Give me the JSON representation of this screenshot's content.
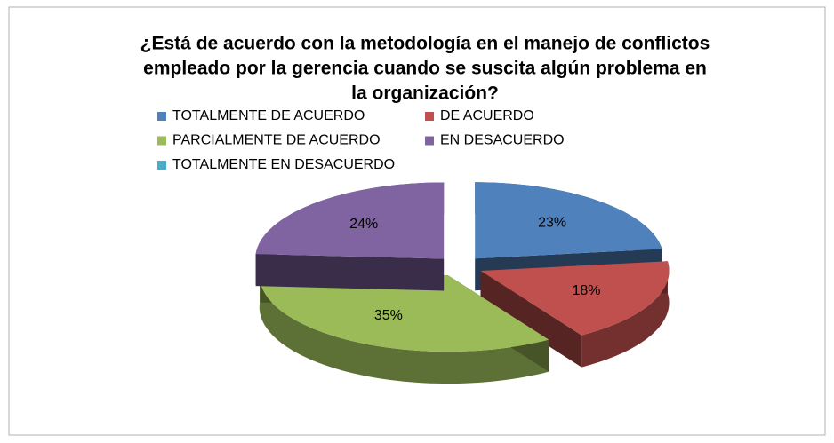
{
  "chart_data": {
    "type": "pie3d",
    "title": [
      "¿Está de acuerdo con la metodología en el manejo de conflictos",
      "empleado por la gerencia cuando se suscita algún problema en",
      "la organización?"
    ],
    "categories": [
      "TOTALMENTE DE ACUERDO",
      "DE ACUERDO",
      "PARCIALMENTE DE ACUERDO",
      "EN DESACUERDO",
      "TOTALMENTE EN DESACUERDO"
    ],
    "values": [
      23,
      18,
      35,
      24,
      0
    ],
    "value_labels": [
      "23%",
      "18%",
      "35%",
      "24%",
      null
    ],
    "colors": [
      "#4f81bd",
      "#c0504d",
      "#9bbb59",
      "#8064a2",
      "#4bacc6"
    ],
    "legend": "top"
  }
}
